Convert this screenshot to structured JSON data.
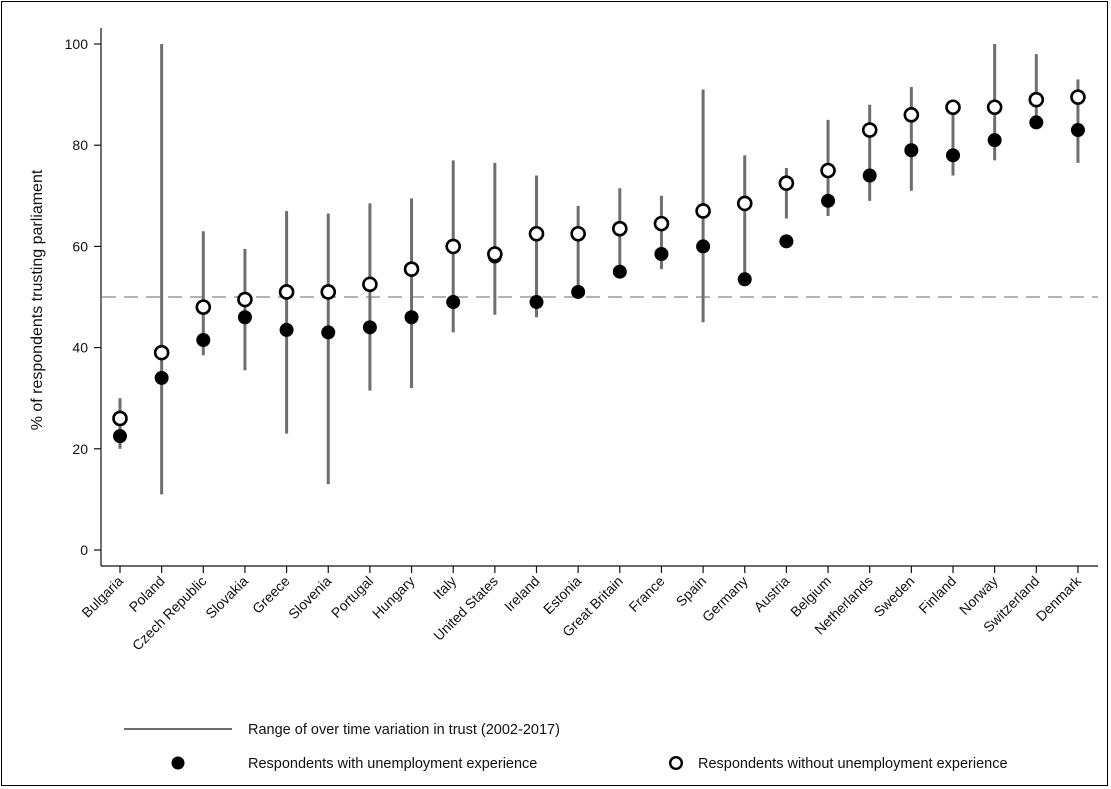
{
  "chart_data": {
    "type": "scatter",
    "title": "",
    "xlabel": "",
    "ylabel": "% of respondents trusting parliament",
    "ylim": [
      0,
      100
    ],
    "yticks": [
      0,
      20,
      40,
      60,
      80,
      100
    ],
    "reference_line": 50,
    "categories": [
      "Bulgaria",
      "Poland",
      "Czech Republic",
      "Slovakia",
      "Greece",
      "Slovenia",
      "Portugal",
      "Hungary",
      "Italy",
      "United States",
      "Ireland",
      "Estonia",
      "Great Britain",
      "France",
      "Spain",
      "Germany",
      "Austria",
      "Belgium",
      "Netherlands",
      "Sweden",
      "Finland",
      "Norway",
      "Switzerland",
      "Denmark"
    ],
    "series": [
      {
        "name": "Range of over time variation in trust (2002-2017)",
        "type": "range",
        "low": [
          20,
          11,
          38.5,
          35.5,
          23,
          13,
          31.5,
          32,
          43,
          46.5,
          46,
          51,
          55,
          55.5,
          45,
          53.5,
          65.5,
          66,
          69,
          71,
          74,
          77,
          84.5,
          76.5
        ],
        "high": [
          30,
          100,
          63,
          59.5,
          67,
          66.5,
          68.5,
          69.5,
          77,
          76.5,
          74,
          68,
          71.5,
          70,
          91,
          78,
          75.5,
          85,
          88,
          91.5,
          89,
          100,
          98,
          93
        ]
      },
      {
        "name": "Respondents with unemployment experience",
        "marker": "filled-circle",
        "values": [
          22.5,
          34,
          41.5,
          46,
          43.5,
          43,
          44,
          46,
          49,
          58,
          49,
          51,
          55,
          58.5,
          60,
          53.5,
          61,
          69,
          74,
          79,
          78,
          81,
          84.5,
          83
        ]
      },
      {
        "name": "Respondents without unemployment experience",
        "marker": "hollow-circle",
        "values": [
          26,
          39,
          48,
          49.5,
          51,
          51,
          52.5,
          55.5,
          60,
          58.5,
          62.5,
          62.5,
          63.5,
          64.5,
          67,
          68.5,
          72.5,
          75,
          83,
          86,
          87.5,
          87.5,
          89,
          89.5
        ]
      }
    ],
    "legend_position": "bottom",
    "grid": false
  }
}
